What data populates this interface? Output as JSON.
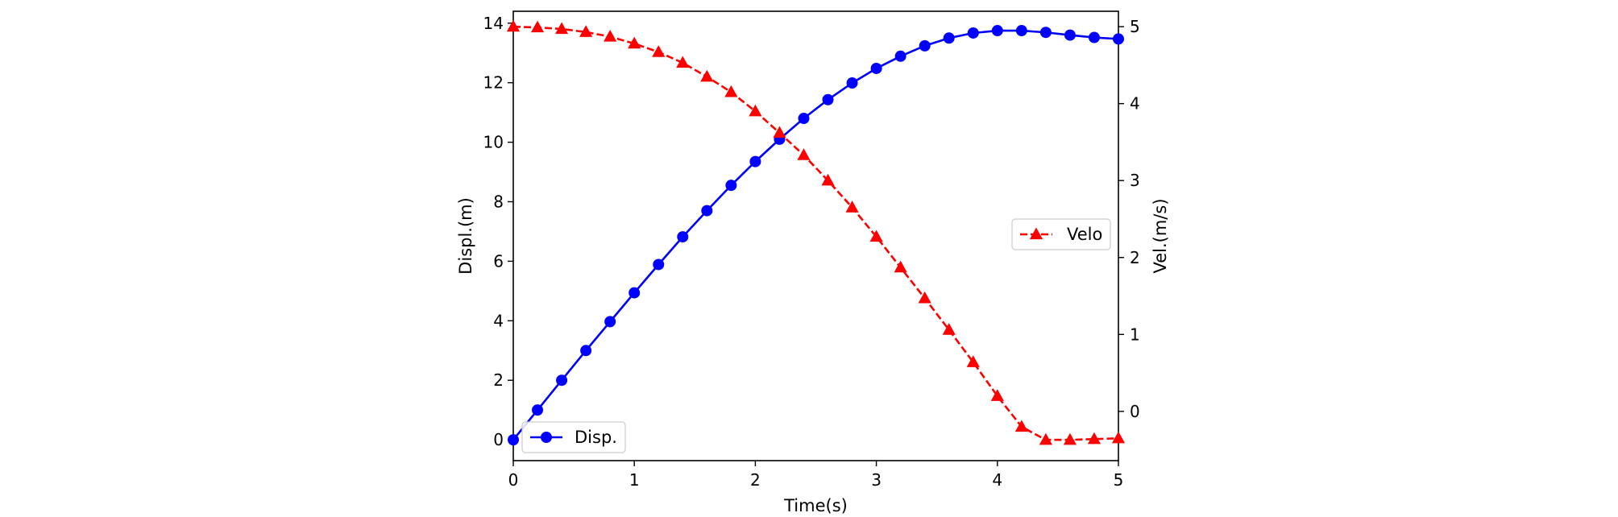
{
  "chart_data": {
    "type": "line",
    "xlabel": "Time(s)",
    "ylabel_left": "Displ.(m)",
    "ylabel_right": "Vel.(m/s)",
    "xlim": [
      0,
      5
    ],
    "ylim_left": [
      -0.7,
      14.4
    ],
    "ylim_right": [
      -0.64,
      5.2
    ],
    "x_ticks": [
      0,
      1,
      2,
      3,
      4,
      5
    ],
    "y_ticks_left": [
      0,
      2,
      4,
      6,
      8,
      10,
      12,
      14
    ],
    "y_ticks_right": [
      0,
      1,
      2,
      3,
      4,
      5
    ],
    "grid": false,
    "x": [
      0,
      0.2,
      0.4,
      0.6,
      0.8,
      1.0,
      1.2,
      1.4,
      1.6,
      1.8,
      2.0,
      2.2,
      2.4,
      2.6,
      2.8,
      3.0,
      3.2,
      3.4,
      3.6,
      3.8,
      4.0,
      4.2,
      4.4,
      4.6,
      4.8,
      5.0
    ],
    "series": [
      {
        "name": "Disp.",
        "axis": "left",
        "color": "#0000ff",
        "linestyle": "solid",
        "marker": "circle",
        "legend_location": "lower-left",
        "values": [
          0,
          1.0,
          2.0,
          3.0,
          3.97,
          4.94,
          5.89,
          6.82,
          7.7,
          8.55,
          9.35,
          10.1,
          10.8,
          11.43,
          11.99,
          12.48,
          12.89,
          13.24,
          13.5,
          13.67,
          13.75,
          13.75,
          13.69,
          13.6,
          13.52,
          13.47
        ]
      },
      {
        "name": "Velo",
        "axis": "right",
        "color": "#ff0000",
        "linestyle": "dashed",
        "marker": "triangle",
        "legend_location": "center-right",
        "values": [
          5.0,
          4.99,
          4.97,
          4.93,
          4.87,
          4.78,
          4.67,
          4.53,
          4.35,
          4.15,
          3.9,
          3.62,
          3.33,
          3.0,
          2.65,
          2.27,
          1.87,
          1.47,
          1.06,
          0.64,
          0.2,
          -0.2,
          -0.37,
          -0.37,
          -0.36,
          -0.35
        ]
      }
    ]
  }
}
